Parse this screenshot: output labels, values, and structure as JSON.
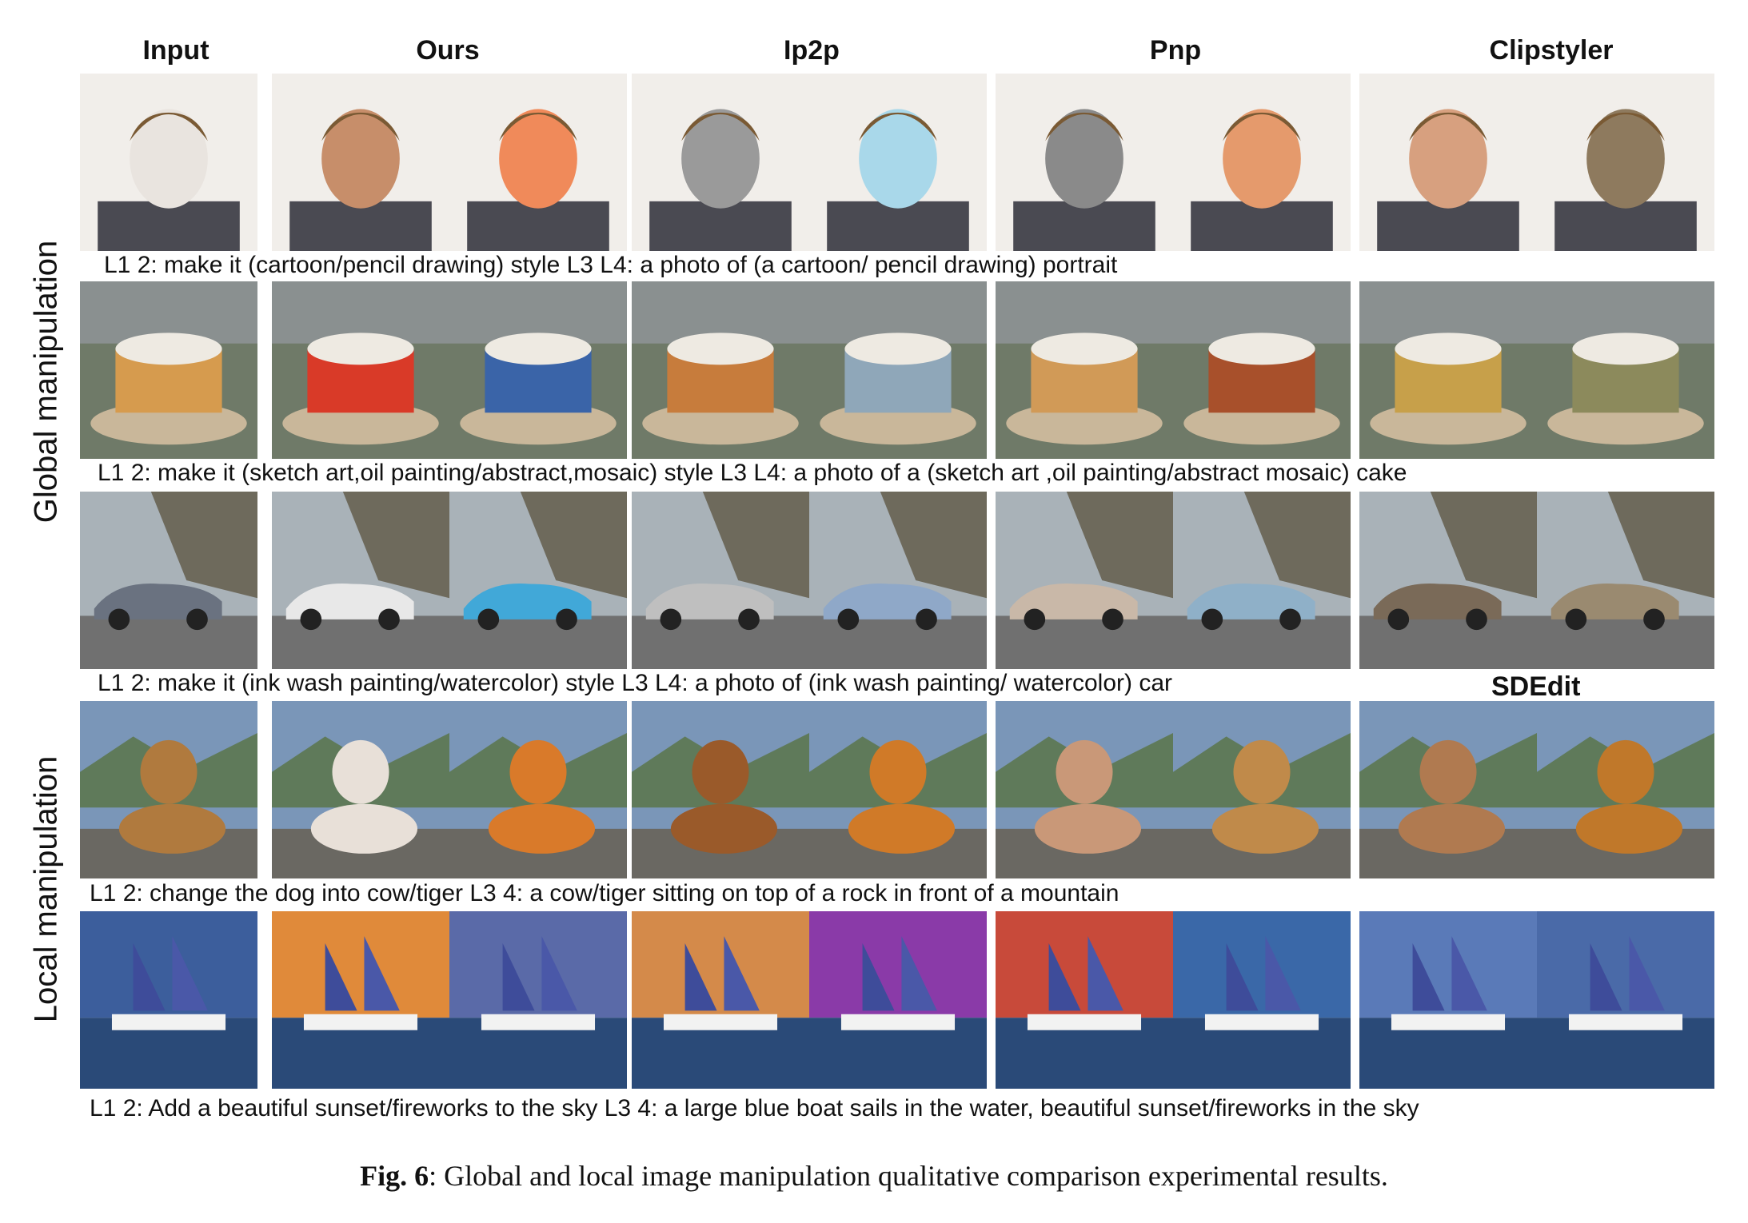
{
  "columns": {
    "input": "Input",
    "ours": "Ours",
    "ip2p": "Ip2p",
    "pnp": "Pnp",
    "clipstyler": "Clipstyler"
  },
  "side_labels": {
    "global": "Global manipulation",
    "local": "Local manipulation"
  },
  "sdedit_label": "SDEdit",
  "prompts": [
    "L1 2: make it (cartoon/pencil drawing) style L3 L4: a photo of (a cartoon/ pencil drawing) portrait",
    "L1 2: make it (sketch art,oil painting/abstract,mosaic)  style  L3 L4: a photo of a (sketch art ,oil painting/abstract mosaic) cake",
    "L1 2: make it (ink wash painting/watercolor) style   L3 L4:  a photo of (ink wash painting/ watercolor) car",
    "L1 2: change the dog into cow/tiger L3 4: a cow/tiger sitting on top of a rock in front of a mountain",
    "L1 2: Add a beautiful sunset/fireworks to the sky  L3 4: a large blue boat sails in the water, beautiful sunset/fireworks in the sky"
  ],
  "caption": {
    "label": "Fig. 6",
    "text": ": Global and local image manipulation qualitative comparison experimental results."
  },
  "palette": {
    "portrait": [
      "#e9e4df",
      "#c78e6a",
      "#f08a5a",
      "#9a9a9a",
      "#a9d8ea",
      "#8a8a8a",
      "#e59a6c",
      "#d7a07f",
      "#8e7a5e",
      "#6a6a6a"
    ],
    "cake": [
      "#d69b4e",
      "#d93a28",
      "#3a64a8",
      "#c77c3c",
      "#8fa7b9",
      "#d19a57",
      "#a8502b",
      "#c7a04a",
      "#8c8a5c"
    ],
    "car": [
      "#6a7280",
      "#e8e8e8",
      "#41a8d8",
      "#bfbfbf",
      "#8fa8c8",
      "#c9b8a8",
      "#8fb0c8",
      "#7a6a58",
      "#9a8a70"
    ],
    "animal": [
      "#b07a3e",
      "#e8e0d8",
      "#d97a2a",
      "#9a5a2a",
      "#d07a28",
      "#c99878",
      "#c08a4a",
      "#b07a50",
      "#c0782a"
    ],
    "boat": [
      "#3c5e9c",
      "#e08a3a",
      "#5a6aa8",
      "#d48a4a",
      "#8a3aa8",
      "#c84a3a",
      "#3a68a8",
      "#5a7ab8",
      "#4a6aa8"
    ]
  }
}
